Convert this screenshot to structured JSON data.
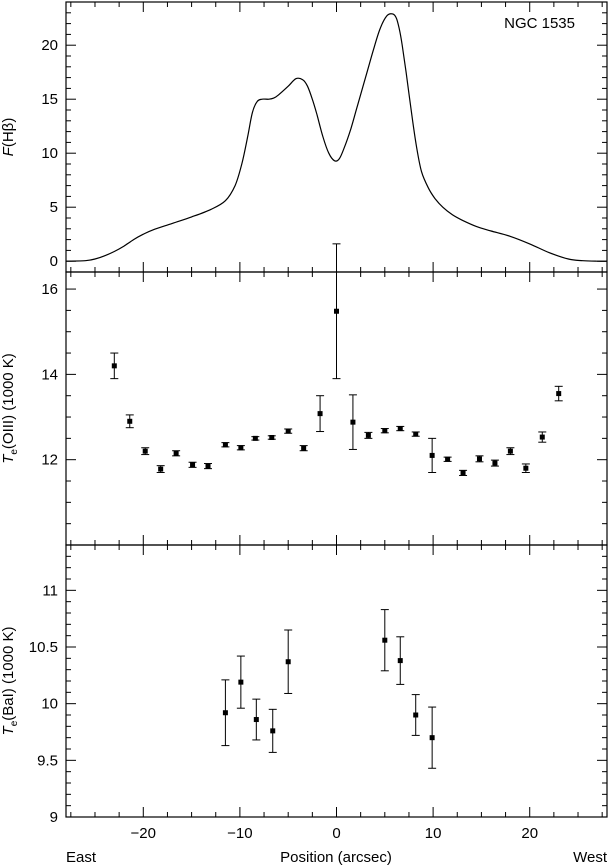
{
  "chart_data": {
    "type": "multi-panel",
    "x_range": [
      -28,
      28
    ],
    "xlabel": "Position (arcsec)",
    "xlabel_left": "East",
    "xlabel_right": "West",
    "x_ticks_major": [
      -20,
      -10,
      0,
      10,
      20
    ],
    "x_tick_labels": [
      "−20",
      "−10",
      "0",
      "10",
      "20"
    ],
    "x_ticks_minor": [
      -27.5,
      -25,
      -22.5,
      -17.5,
      -15,
      -12.5,
      -7.5,
      -5,
      -2.5,
      2.5,
      5,
      7.5,
      12.5,
      15,
      17.5,
      22.5,
      25,
      27.5
    ],
    "panels": [
      {
        "type": "line",
        "annotation": "NGC 1535",
        "ylabel_italic": "F",
        "ylabel_rest": "(Hβ)",
        "ylim": [
          -1,
          24
        ],
        "y_ticks_major": [
          0,
          5,
          10,
          15,
          20
        ],
        "y_tick_labels": [
          "0",
          "5",
          "10",
          "15",
          "20"
        ],
        "y_ticks_minor": [
          1,
          2,
          3,
          4,
          6,
          7,
          8,
          9,
          11,
          12,
          13,
          14,
          16,
          17,
          18,
          19,
          21,
          22,
          23
        ],
        "series": [
          {
            "x": [
              -28,
              -26,
              -25,
              -24,
              -23,
              -22,
              -21,
              -20,
              -19,
              -17,
              -15,
              -13,
              -11.5,
              -10.5,
              -9.8,
              -9.2,
              -8.7,
              -8.2,
              -7.7,
              -7.0,
              -6.5,
              -6.0,
              -5.0,
              -4.2,
              -3.5,
              -3.0,
              -2.5,
              -2.0,
              -1.4,
              -0.8,
              -0.2,
              0.3,
              0.8,
              1.5,
              2.2,
              3.0,
              3.8,
              4.5,
              5.2,
              5.8,
              6.2,
              6.5,
              6.8,
              7.2,
              7.8,
              8.3,
              8.8,
              9.5,
              10.2,
              11.0,
              12.0,
              13.0,
              14.5,
              16.0,
              18.0,
              20.0,
              22.0,
              24.0,
              25.5,
              27.0,
              28.0
            ],
            "y": [
              0,
              0.05,
              0.2,
              0.5,
              0.9,
              1.4,
              2.0,
              2.5,
              2.9,
              3.5,
              4.1,
              4.8,
              5.6,
              7.0,
              9.0,
              11.5,
              13.8,
              14.8,
              15.0,
              15.0,
              15.1,
              15.4,
              16.2,
              16.9,
              16.8,
              16.2,
              15.0,
              13.5,
              11.5,
              10.0,
              9.3,
              9.5,
              10.5,
              12.3,
              14.5,
              17.0,
              19.5,
              21.5,
              22.7,
              22.9,
              22.5,
              21.5,
              20.0,
              17.5,
              13.5,
              10.5,
              8.3,
              6.8,
              5.8,
              5.0,
              4.3,
              3.8,
              3.2,
              2.8,
              2.3,
              1.6,
              0.8,
              0.2,
              0.05,
              0,
              0
            ]
          }
        ]
      },
      {
        "type": "scatter",
        "ylabel_italic": "T",
        "ylabel_sub": "e",
        "ylabel_rest": "(OIII) (1000 K)",
        "ylim": [
          10.0,
          16.4
        ],
        "y_ticks_major": [
          12,
          14,
          16
        ],
        "y_tick_labels": [
          "12",
          "14",
          "16"
        ],
        "y_ticks_minor": [
          10.5,
          11.0,
          11.5,
          12.5,
          13.0,
          13.5,
          14.5,
          15.0,
          15.5
        ],
        "points": [
          {
            "x": -23.0,
            "y": 14.2,
            "err": 0.3
          },
          {
            "x": -21.4,
            "y": 12.9,
            "err": 0.15
          },
          {
            "x": -19.8,
            "y": 12.2,
            "err": 0.08
          },
          {
            "x": -18.2,
            "y": 11.78,
            "err": 0.08
          },
          {
            "x": -16.6,
            "y": 12.15,
            "err": 0.06
          },
          {
            "x": -14.9,
            "y": 11.88,
            "err": 0.06
          },
          {
            "x": -13.3,
            "y": 11.85,
            "err": 0.06
          },
          {
            "x": -11.5,
            "y": 12.35,
            "err": 0.05
          },
          {
            "x": -9.9,
            "y": 12.28,
            "err": 0.05
          },
          {
            "x": -8.4,
            "y": 12.5,
            "err": 0.04
          },
          {
            "x": -6.7,
            "y": 12.52,
            "err": 0.04
          },
          {
            "x": -5.0,
            "y": 12.67,
            "err": 0.05
          },
          {
            "x": -3.4,
            "y": 12.27,
            "err": 0.06
          },
          {
            "x": -1.7,
            "y": 13.08,
            "err": 0.42
          },
          {
            "x": 0.0,
            "y": 15.48,
            "err": 1.58
          },
          {
            "x": 1.7,
            "y": 12.88,
            "err": 0.64
          },
          {
            "x": 3.3,
            "y": 12.57,
            "err": 0.07
          },
          {
            "x": 5.0,
            "y": 12.68,
            "err": 0.05
          },
          {
            "x": 6.6,
            "y": 12.73,
            "err": 0.05
          },
          {
            "x": 8.2,
            "y": 12.6,
            "err": 0.05
          },
          {
            "x": 9.9,
            "y": 12.1,
            "err": 0.4
          },
          {
            "x": 11.5,
            "y": 12.01,
            "err": 0.05
          },
          {
            "x": 13.1,
            "y": 11.69,
            "err": 0.06
          },
          {
            "x": 14.8,
            "y": 12.02,
            "err": 0.07
          },
          {
            "x": 16.4,
            "y": 11.92,
            "err": 0.07
          },
          {
            "x": 18.0,
            "y": 12.2,
            "err": 0.08
          },
          {
            "x": 19.6,
            "y": 11.8,
            "err": 0.1
          },
          {
            "x": 21.3,
            "y": 12.53,
            "err": 0.12
          },
          {
            "x": 23.0,
            "y": 13.55,
            "err": 0.17
          }
        ]
      },
      {
        "type": "scatter",
        "ylabel_italic": "T",
        "ylabel_sub": "e",
        "ylabel_rest": "(BaI) (1000 K)",
        "ylim": [
          9.0,
          11.4
        ],
        "y_ticks_major": [
          9.0,
          9.5,
          10.0,
          10.5,
          11.0
        ],
        "y_tick_labels": [
          "9",
          "9.5",
          "10",
          "10.5",
          "11"
        ],
        "y_ticks_minor": [
          9.1,
          9.2,
          9.3,
          9.4,
          9.6,
          9.7,
          9.8,
          9.9,
          10.1,
          10.2,
          10.3,
          10.4,
          10.6,
          10.7,
          10.8,
          10.9,
          11.1,
          11.2,
          11.3
        ],
        "points": [
          {
            "x": -11.5,
            "y": 9.92,
            "err": 0.29
          },
          {
            "x": -9.9,
            "y": 10.19,
            "err": 0.23
          },
          {
            "x": -8.3,
            "y": 9.86,
            "err": 0.18
          },
          {
            "x": -6.6,
            "y": 9.76,
            "err": 0.19
          },
          {
            "x": -5.0,
            "y": 10.37,
            "err": 0.28
          },
          {
            "x": 5.0,
            "y": 10.56,
            "err": 0.27
          },
          {
            "x": 6.6,
            "y": 10.38,
            "err": 0.21
          },
          {
            "x": 8.2,
            "y": 9.9,
            "err": 0.18
          },
          {
            "x": 9.9,
            "y": 9.7,
            "err": 0.27
          }
        ]
      }
    ]
  }
}
